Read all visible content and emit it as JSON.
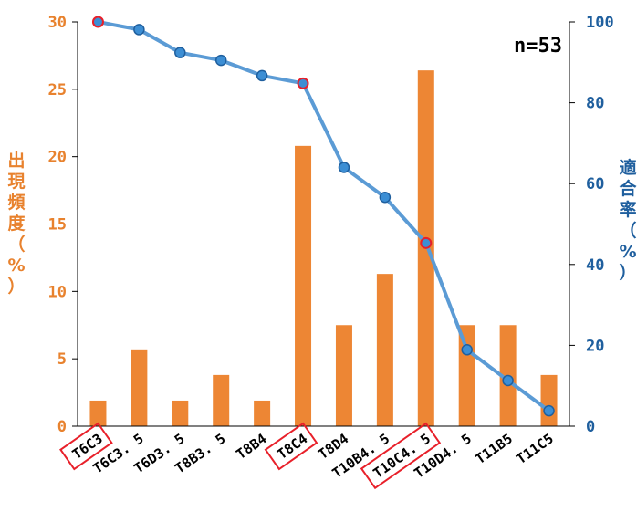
{
  "chart_data": {
    "type": "bar+line",
    "categories": [
      "T6C3",
      "T6C3.5",
      "T6D3.5",
      "T8B3.5",
      "T8B4",
      "T8C4",
      "T8D4",
      "T10B4.5",
      "T10C4.5",
      "T10D4.5",
      "T11B5",
      "T11C5"
    ],
    "category_labels": [
      "T6C3",
      "T6C3. 5",
      "T6D3. 5",
      "T8B3. 5",
      "T8B4",
      "T8C4",
      "T8D4",
      "T10B4. 5",
      "T10C4. 5",
      "T10D4. 5",
      "T11B5",
      "T11C5"
    ],
    "series": [
      {
        "type": "bar",
        "axis": "left",
        "values": [
          1.9,
          5.7,
          1.9,
          3.8,
          1.9,
          20.8,
          7.5,
          11.3,
          26.4,
          7.5,
          7.5,
          3.8
        ]
      },
      {
        "type": "line",
        "axis": "right",
        "values": [
          100,
          98.1,
          92.4,
          90.5,
          86.7,
          84.8,
          64.0,
          56.6,
          45.3,
          18.9,
          11.3,
          3.8
        ]
      }
    ],
    "highlighted_categories": [
      "T6C3",
      "T8C4",
      "T10C4.5"
    ],
    "ylabel": "出現頻度（%）",
    "y2label": "適合率（%）",
    "ylim": [
      0,
      30
    ],
    "y2lim": [
      0,
      100
    ],
    "yticks": [
      "0",
      "5",
      "10",
      "15",
      "20",
      "25",
      "30"
    ],
    "y2ticks": [
      "0",
      "20",
      "40",
      "60",
      "80",
      "100"
    ],
    "annotation": "n=53",
    "colors": {
      "bar": "#ED8634",
      "line": "#5B9BD5",
      "marker_fill": "#3C8ED4",
      "marker_edge": "#1F5F9E",
      "highlight": "#E8202A",
      "left_axis": "#E8822E",
      "right_axis": "#1F5F9E"
    }
  }
}
